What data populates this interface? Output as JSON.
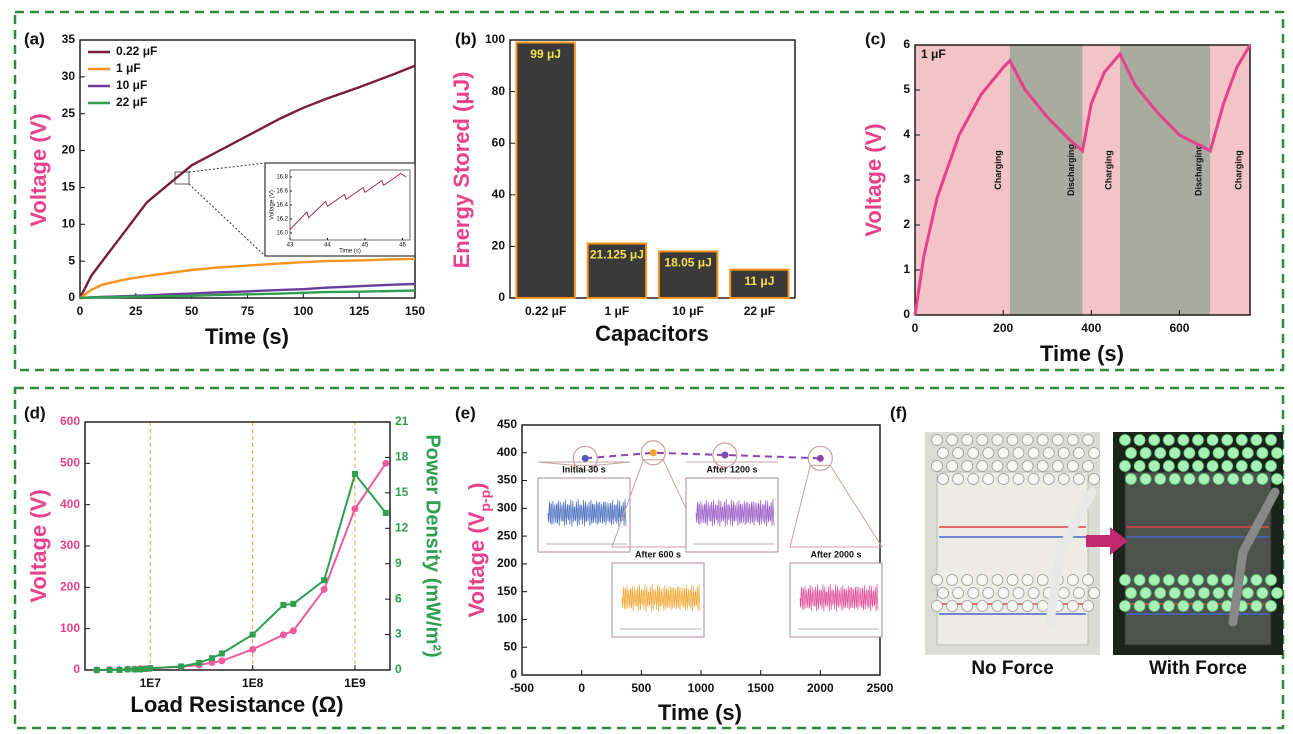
{
  "chart_data": [
    {
      "type": "line",
      "panel": "(a)",
      "xlabel": "Time (s)",
      "ylabel": [
        "Voltage (V)"
      ],
      "x": [
        0,
        5,
        10,
        20,
        30,
        40,
        50,
        60,
        75,
        90,
        100,
        110,
        125,
        140,
        150
      ],
      "series": [
        {
          "name": "0.22 μF",
          "color": "#7a1c3c",
          "values": [
            0,
            3,
            5,
            9,
            13,
            15.5,
            18,
            19.6,
            22,
            24.4,
            25.8,
            27,
            28.6,
            30.3,
            31.5
          ]
        },
        {
          "name": "1 μF",
          "color": "#f7931e",
          "values": [
            0,
            1.1,
            1.8,
            2.5,
            3.0,
            3.4,
            3.8,
            4.1,
            4.4,
            4.7,
            4.85,
            5.0,
            5.1,
            5.25,
            5.3
          ]
        },
        {
          "name": "10 μF",
          "color": "#6a3d9a",
          "values": [
            0,
            0.1,
            0.15,
            0.25,
            0.35,
            0.5,
            0.6,
            0.75,
            0.9,
            1.1,
            1.2,
            1.4,
            1.6,
            1.8,
            1.9
          ]
        },
        {
          "name": "22 μF",
          "color": "#2e9e4f",
          "values": [
            0,
            0.05,
            0.1,
            0.15,
            0.2,
            0.25,
            0.3,
            0.4,
            0.5,
            0.6,
            0.7,
            0.8,
            0.85,
            0.95,
            1.0
          ]
        }
      ],
      "xlim": [
        0,
        150
      ],
      "xticks": [
        0,
        25,
        50,
        75,
        100,
        125,
        150
      ],
      "ylim": [
        0,
        35
      ],
      "yticks": [
        0,
        5,
        10,
        15,
        20,
        25,
        30,
        35
      ],
      "legend": "upper left",
      "inset": {
        "xlabel": "Time (s)",
        "ylabel": "Voltage (V)",
        "color": "#a0304a",
        "x": [
          43,
          43.45,
          43.5,
          43.95,
          44,
          44.45,
          44.5,
          44.95,
          45,
          45.45,
          45.5,
          45.95,
          46.1
        ],
        "values": [
          16.05,
          16.3,
          16.22,
          16.45,
          16.38,
          16.55,
          16.48,
          16.65,
          16.58,
          16.75,
          16.68,
          16.85,
          16.8
        ],
        "xlim": [
          43,
          46.2
        ],
        "xticks": [
          43,
          44,
          45,
          46
        ],
        "ylim": [
          15.9,
          16.9
        ],
        "yticks": [
          {
            "value": 16,
            "label": "16.0"
          },
          {
            "value": 16.2,
            "label": "16.2"
          },
          {
            "value": 16.4,
            "label": "16.4"
          },
          {
            "value": 16.6,
            "label": "16.6"
          },
          {
            "value": 16.8,
            "label": "16.8"
          }
        ]
      }
    },
    {
      "type": "bar",
      "panel": "(b)",
      "xlabel": "Capacitors",
      "ylabel": [
        "Energy Stored (μJ)"
      ],
      "categories": [
        "0.22 μF",
        "1 μF",
        "10 μF",
        "22 μF"
      ],
      "values": [
        99,
        21.125,
        18.05,
        11
      ],
      "value_labels": [
        "99 μJ",
        "21.125 μJ",
        "18.05 μJ",
        "11 μJ"
      ],
      "color": "#3a3a3a",
      "edge_color": "#f7931e",
      "label_color": "#f5e14a",
      "ylim": [
        0,
        100
      ],
      "yticks": [
        0,
        20,
        40,
        60,
        80,
        100
      ]
    },
    {
      "type": "line",
      "panel": "(c)",
      "xlabel": "Time (s)",
      "ylabel": [
        "Voltage (V)"
      ],
      "annotation": "1 μF",
      "color": "#e8408a",
      "x": [
        0,
        20,
        50,
        100,
        150,
        200,
        215,
        250,
        300,
        350,
        380,
        400,
        430,
        465,
        500,
        550,
        600,
        650,
        670,
        700,
        730,
        760
      ],
      "values": [
        0,
        1.3,
        2.6,
        4.0,
        4.9,
        5.5,
        5.65,
        5.0,
        4.4,
        3.9,
        3.65,
        4.7,
        5.4,
        5.8,
        5.1,
        4.5,
        4.0,
        3.75,
        3.65,
        4.7,
        5.5,
        6.0
      ],
      "regions": [
        {
          "label": "Charging",
          "start": 0,
          "end": 215,
          "color": "#f2c4c8"
        },
        {
          "label": "Discharging",
          "start": 215,
          "end": 380,
          "color": "#a9aaa0"
        },
        {
          "label": "Charging",
          "start": 380,
          "end": 465,
          "color": "#f2c4c8"
        },
        {
          "label": "Discharging",
          "start": 465,
          "end": 670,
          "color": "#a9aaa0"
        },
        {
          "label": "Charging",
          "start": 670,
          "end": 760,
          "color": "#f2c4c8"
        }
      ],
      "xlim": [
        0,
        760
      ],
      "xticks": [
        0,
        200,
        400,
        600
      ],
      "ylim": [
        0,
        6
      ],
      "yticks": [
        0,
        1,
        2,
        3,
        4,
        5,
        6
      ]
    },
    {
      "type": "line",
      "panel": "(d)",
      "xlabel": "Load Resistance (Ω)",
      "ylabel": [
        "Voltage (V)"
      ],
      "y2label": "Power Density (mW/m²)",
      "x": [
        3000000,
        4000000,
        5000000,
        6000000,
        7000000,
        8000000,
        9000000,
        10000000,
        20000000,
        30000000,
        40000000,
        50000000,
        100000000,
        200000000,
        250000000,
        500000000,
        1000000000,
        2000000000
      ],
      "series": [
        {
          "name": "Voltage",
          "color": "#ee5a9c",
          "marker": "circle",
          "values": [
            0,
            1,
            1,
            2,
            2,
            3,
            3,
            4,
            8,
            12,
            18,
            22,
            50,
            85,
            95,
            195,
            390,
            500
          ]
        },
        {
          "name": "Power Density",
          "color": "#2e9e4f",
          "marker": "square",
          "axis": "y2",
          "values": [
            0,
            0,
            0,
            0.05,
            0.05,
            0.05,
            0.1,
            0.15,
            0.3,
            0.6,
            1.0,
            1.4,
            3.0,
            5.5,
            5.6,
            7.6,
            16.6,
            13.3
          ]
        }
      ],
      "xlog": true,
      "xlim": [
        2300000,
        2200000000
      ],
      "xticks": [
        {
          "value": 10000000,
          "label": "1E7"
        },
        {
          "value": 100000000,
          "label": "1E8"
        },
        {
          "value": 1000000000,
          "label": "1E9"
        }
      ],
      "ylim": [
        0,
        600
      ],
      "yticks": [
        0,
        100,
        200,
        300,
        400,
        500,
        600
      ],
      "y2lim": [
        0,
        21
      ],
      "y2ticks": [
        0,
        3,
        6,
        9,
        12,
        15,
        18,
        21
      ],
      "grid": true
    },
    {
      "type": "scatter",
      "panel": "(e)",
      "xlabel": "Time (s)",
      "ylabel": [
        "Voltage (V",
        "p-p",
        ")"
      ],
      "x": [
        30,
        600,
        1200,
        2000
      ],
      "values": [
        390,
        400,
        396,
        390
      ],
      "color": "#8e44ad",
      "point_colors": [
        "#4a5ab8",
        "#f7a21e",
        "#7b4bb0",
        "#8e44ad"
      ],
      "insets": [
        "Initial 30 s",
        "After 600 s",
        "After 1200 s",
        "After 2000 s"
      ],
      "inset_colors": [
        "#4a6fc0",
        "#f2a838",
        "#9a5cc6",
        "#e0509a"
      ],
      "xlim": [
        -500,
        2500
      ],
      "xticks": [
        -500,
        0,
        500,
        1000,
        1500,
        2000,
        2500
      ],
      "ylim": [
        0,
        450
      ],
      "yticks": [
        0,
        50,
        100,
        150,
        200,
        250,
        300,
        350,
        400,
        450
      ]
    },
    {
      "type": "image",
      "panel": "(f)",
      "captions": [
        "No Force",
        "With Force"
      ]
    }
  ]
}
